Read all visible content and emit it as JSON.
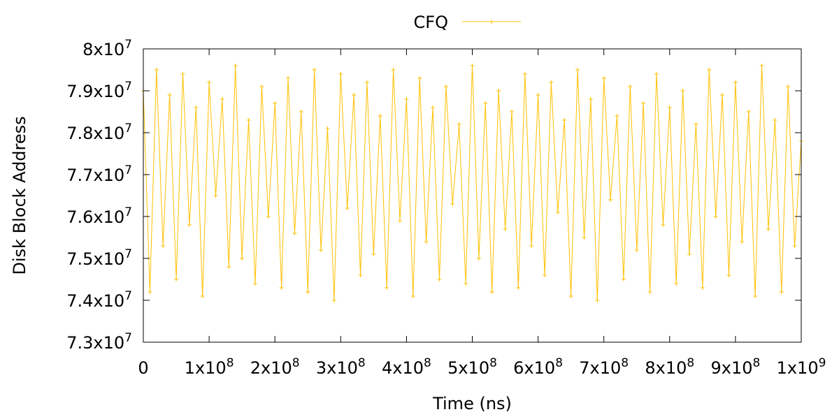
{
  "chart_data": {
    "type": "line",
    "title": "",
    "xlabel": "Time (ns)",
    "ylabel": "Disk Block Address",
    "xlim": [
      0,
      1000000000
    ],
    "ylim": [
      73000000,
      80000000
    ],
    "x_ticks": [
      {
        "value": 0,
        "base": "0",
        "exp": ""
      },
      {
        "value": 100000000,
        "base": "1x10",
        "exp": "8"
      },
      {
        "value": 200000000,
        "base": "2x10",
        "exp": "8"
      },
      {
        "value": 300000000,
        "base": "3x10",
        "exp": "8"
      },
      {
        "value": 400000000,
        "base": "4x10",
        "exp": "8"
      },
      {
        "value": 500000000,
        "base": "5x10",
        "exp": "8"
      },
      {
        "value": 600000000,
        "base": "6x10",
        "exp": "8"
      },
      {
        "value": 700000000,
        "base": "7x10",
        "exp": "8"
      },
      {
        "value": 800000000,
        "base": "8x10",
        "exp": "8"
      },
      {
        "value": 900000000,
        "base": "9x10",
        "exp": "8"
      },
      {
        "value": 1000000000,
        "base": "1x10",
        "exp": "9"
      }
    ],
    "y_ticks": [
      {
        "value": 73000000,
        "base": "7.3x10",
        "exp": "7"
      },
      {
        "value": 74000000,
        "base": "7.4x10",
        "exp": "7"
      },
      {
        "value": 75000000,
        "base": "7.5x10",
        "exp": "7"
      },
      {
        "value": 76000000,
        "base": "7.6x10",
        "exp": "7"
      },
      {
        "value": 77000000,
        "base": "7.7x10",
        "exp": "7"
      },
      {
        "value": 78000000,
        "base": "7.8x10",
        "exp": "7"
      },
      {
        "value": 79000000,
        "base": "7.9x10",
        "exp": "7"
      },
      {
        "value": 80000000,
        "base": "8x10",
        "exp": "7"
      }
    ],
    "grid": false,
    "legend": "top-center",
    "series": [
      {
        "name": "CFQ",
        "color": "#ffc000",
        "marker": "plus",
        "x": [
          0,
          10000000,
          20000000,
          30000000,
          40000000,
          50000000,
          60000000,
          70000000,
          80000000,
          90000000,
          100000000,
          110000000,
          120000000,
          130000000,
          140000000,
          150000000,
          160000000,
          170000000,
          180000000,
          190000000,
          200000000,
          210000000,
          220000000,
          230000000,
          240000000,
          250000000,
          260000000,
          270000000,
          280000000,
          290000000,
          300000000,
          310000000,
          320000000,
          330000000,
          340000000,
          350000000,
          360000000,
          370000000,
          380000000,
          390000000,
          400000000,
          410000000,
          420000000,
          430000000,
          440000000,
          450000000,
          460000000,
          470000000,
          480000000,
          490000000,
          500000000,
          510000000,
          520000000,
          530000000,
          540000000,
          550000000,
          560000000,
          570000000,
          580000000,
          590000000,
          600000000,
          610000000,
          620000000,
          630000000,
          640000000,
          650000000,
          660000000,
          670000000,
          680000000,
          690000000,
          700000000,
          710000000,
          720000000,
          730000000,
          740000000,
          750000000,
          760000000,
          770000000,
          780000000,
          790000000,
          800000000,
          810000000,
          820000000,
          830000000,
          840000000,
          850000000,
          860000000,
          870000000,
          880000000,
          890000000,
          900000000,
          910000000,
          920000000,
          930000000,
          940000000,
          950000000,
          960000000,
          970000000,
          980000000,
          990000000,
          1000000000
        ],
        "y": [
          79000000,
          74200000,
          79500000,
          75300000,
          78900000,
          74500000,
          79400000,
          75800000,
          78600000,
          74100000,
          79200000,
          76500000,
          78800000,
          74800000,
          79600000,
          75000000,
          78300000,
          74400000,
          79100000,
          76000000,
          78700000,
          74300000,
          79300000,
          75600000,
          78500000,
          74200000,
          79500000,
          75200000,
          78100000,
          74000000,
          79400000,
          76200000,
          78900000,
          74600000,
          79200000,
          75100000,
          78400000,
          74300000,
          79500000,
          75900000,
          78800000,
          74100000,
          79300000,
          75400000,
          78600000,
          74500000,
          79100000,
          76300000,
          78200000,
          74400000,
          79600000,
          75000000,
          78700000,
          74200000,
          79000000,
          75700000,
          78500000,
          74300000,
          79400000,
          75300000,
          78900000,
          74600000,
          79200000,
          76100000,
          78300000,
          74100000,
          79500000,
          75500000,
          78800000,
          74000000,
          79300000,
          76400000,
          78400000,
          74500000,
          79100000,
          75200000,
          78700000,
          74200000,
          79400000,
          75800000,
          78600000,
          74400000,
          79000000,
          75100000,
          78200000,
          74300000,
          79500000,
          76000000,
          78900000,
          74600000,
          79200000,
          75400000,
          78500000,
          74100000,
          79600000,
          75700000,
          78300000,
          74200000,
          79100000,
          75300000,
          77800000
        ]
      }
    ]
  }
}
